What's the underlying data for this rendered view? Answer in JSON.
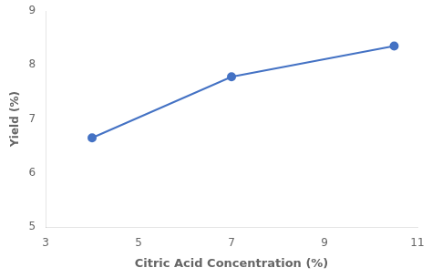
{
  "chart_data": {
    "type": "line",
    "x": [
      4.0,
      7.0,
      10.5
    ],
    "values": [
      6.65,
      7.78,
      8.35
    ],
    "color": "#4472C4",
    "marker": "circle",
    "xlabel": "Citric Acid Concentration (%)",
    "ylabel": "Yield (%)",
    "xlim": [
      3,
      11
    ],
    "ylim": [
      5,
      9
    ],
    "xticks": [
      3,
      5,
      7,
      9,
      11
    ],
    "yticks": [
      5,
      6,
      7,
      8,
      9
    ],
    "grid": false
  }
}
